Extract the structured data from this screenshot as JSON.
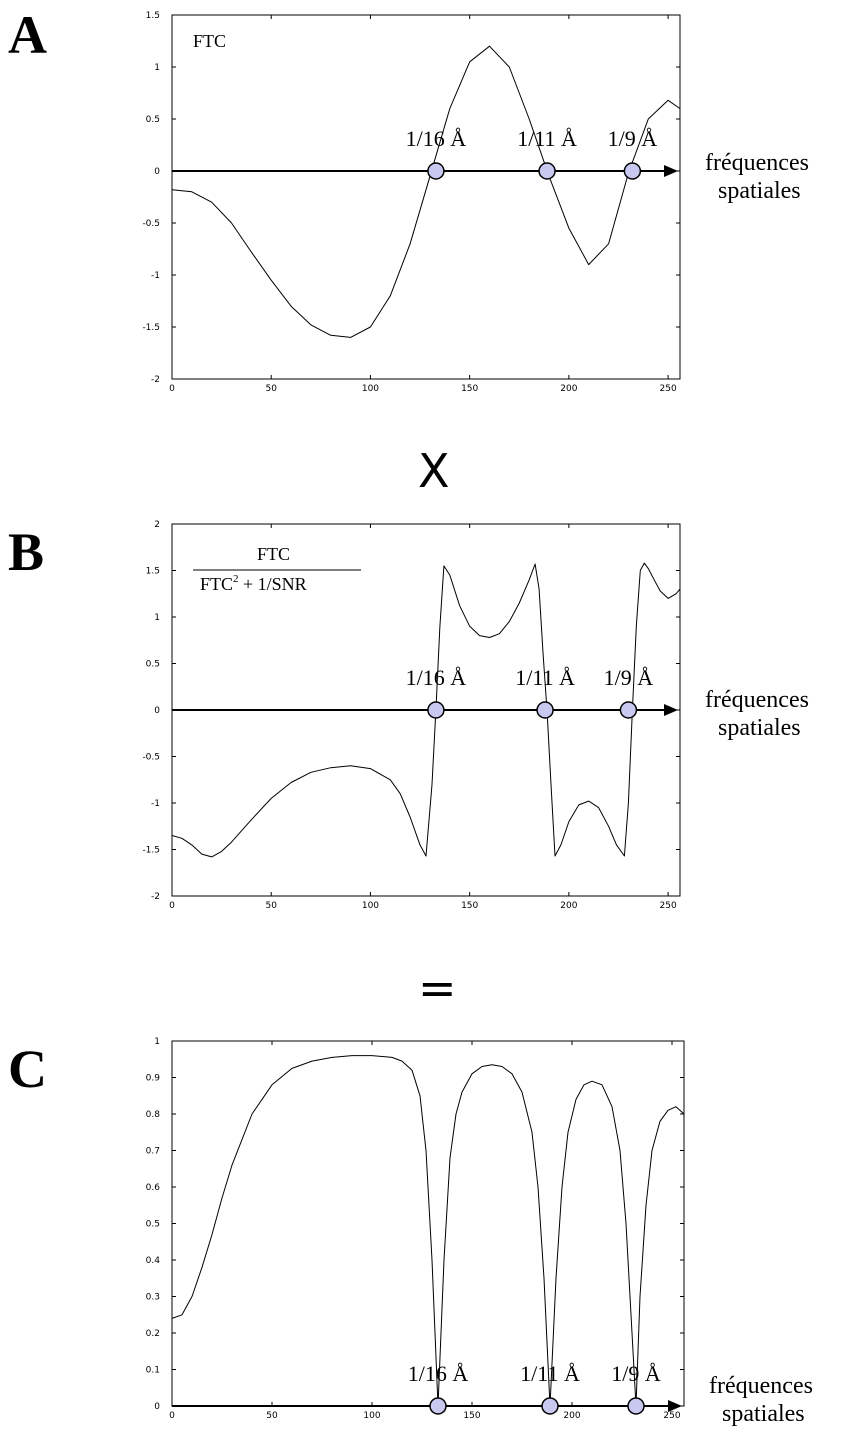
{
  "panels": {
    "A": {
      "letter": "A",
      "title": "FTC"
    },
    "B": {
      "letter": "B",
      "title_numerator": "FTC",
      "title_denominator_base": "FTC",
      "title_denominator_sup": "2",
      "title_denominator_rest": " + 1/SNR"
    },
    "C": {
      "letter": "C"
    }
  },
  "operators": {
    "times": "X",
    "equals": "="
  },
  "axis_label": {
    "line1": "fréquences",
    "line2": "spatiales"
  },
  "zero_labels": [
    "1/16 Å",
    "1/11 Å",
    "1/9 Å"
  ],
  "colors": {
    "curve": "#000000",
    "marker_fill": "#c8c8f0",
    "marker_stroke": "#000000"
  },
  "chart_data": [
    {
      "type": "line",
      "title": "FTC",
      "xlim": [
        0,
        256
      ],
      "ylim": [
        -2,
        1.5
      ],
      "x_ticks": [
        0,
        50,
        100,
        150,
        200,
        250
      ],
      "y_ticks": [
        -2,
        -1.5,
        -1,
        -0.5,
        0,
        0.5,
        1,
        1.5
      ],
      "series": [
        {
          "x": [
            0,
            10,
            20,
            30,
            40,
            50,
            60,
            70,
            80,
            90,
            100,
            110,
            120,
            130,
            140,
            150,
            160,
            170,
            180,
            190,
            200,
            210,
            220,
            230,
            240,
            250,
            256
          ],
          "y": [
            -0.18,
            -0.2,
            -0.3,
            -0.5,
            -0.78,
            -1.05,
            -1.3,
            -1.48,
            -1.58,
            -1.6,
            -1.5,
            -1.2,
            -0.7,
            -0.05,
            0.6,
            1.05,
            1.2,
            1.0,
            0.5,
            -0.05,
            -0.55,
            -0.9,
            -0.7,
            -0.02,
            0.5,
            0.68,
            0.6
          ]
        }
      ],
      "zero_markers": [
        133,
        189,
        232
      ],
      "zero_labels": [
        "1/16 Å",
        "1/11 Å",
        "1/9 Å"
      ]
    },
    {
      "type": "line",
      "title": "FTC / (FTC² + 1/SNR)",
      "xlim": [
        0,
        256
      ],
      "ylim": [
        -2,
        2
      ],
      "x_ticks": [
        0,
        50,
        100,
        150,
        200,
        250
      ],
      "y_ticks": [
        -2,
        -1.5,
        -1,
        -0.5,
        0,
        0.5,
        1,
        1.5,
        2
      ],
      "series": [
        {
          "x": [
            0,
            5,
            10,
            15,
            20,
            25,
            30,
            40,
            50,
            60,
            70,
            80,
            90,
            100,
            110,
            115,
            120,
            125,
            128,
            131,
            133,
            135,
            137,
            140,
            145,
            150,
            155,
            160,
            165,
            170,
            175,
            180,
            183,
            185,
            187,
            189,
            191,
            193,
            196,
            200,
            205,
            210,
            215,
            220,
            224,
            228,
            230,
            232,
            234,
            236,
            238,
            240,
            243,
            246,
            250,
            254,
            256
          ],
          "y": [
            -1.35,
            -1.38,
            -1.45,
            -1.55,
            -1.58,
            -1.52,
            -1.42,
            -1.18,
            -0.95,
            -0.78,
            -0.67,
            -0.62,
            -0.6,
            -0.63,
            -0.75,
            -0.9,
            -1.15,
            -1.45,
            -1.57,
            -0.8,
            0.0,
            0.9,
            1.55,
            1.45,
            1.12,
            0.9,
            0.8,
            0.78,
            0.82,
            0.95,
            1.15,
            1.4,
            1.57,
            1.3,
            0.6,
            0.0,
            -0.8,
            -1.57,
            -1.45,
            -1.2,
            -1.02,
            -0.98,
            -1.05,
            -1.25,
            -1.45,
            -1.57,
            -1.0,
            0.0,
            0.9,
            1.5,
            1.58,
            1.52,
            1.4,
            1.28,
            1.2,
            1.25,
            1.3
          ]
        }
      ],
      "zero_markers": [
        133,
        188,
        230
      ],
      "zero_labels": [
        "1/16 Å",
        "1/11 Å",
        "1/9 Å"
      ]
    },
    {
      "type": "line",
      "title": "",
      "xlim": [
        0,
        256
      ],
      "ylim": [
        0,
        1
      ],
      "x_ticks": [
        0,
        50,
        100,
        150,
        200,
        250
      ],
      "y_ticks": [
        0,
        0.1,
        0.2,
        0.3,
        0.4,
        0.5,
        0.6,
        0.7,
        0.8,
        0.9,
        1
      ],
      "series": [
        {
          "x": [
            0,
            5,
            10,
            15,
            20,
            25,
            30,
            40,
            50,
            60,
            70,
            80,
            90,
            100,
            110,
            115,
            120,
            124,
            127,
            130,
            133,
            136,
            139,
            142,
            145,
            150,
            155,
            160,
            165,
            170,
            175,
            180,
            183,
            186,
            189,
            192,
            195,
            198,
            202,
            206,
            210,
            215,
            220,
            224,
            227,
            230,
            232,
            234,
            237,
            240,
            244,
            248,
            252,
            256
          ],
          "y": [
            0.24,
            0.25,
            0.3,
            0.38,
            0.47,
            0.57,
            0.66,
            0.8,
            0.88,
            0.925,
            0.945,
            0.955,
            0.96,
            0.96,
            0.955,
            0.945,
            0.92,
            0.85,
            0.7,
            0.4,
            0.0,
            0.4,
            0.68,
            0.8,
            0.86,
            0.91,
            0.93,
            0.935,
            0.93,
            0.91,
            0.86,
            0.75,
            0.6,
            0.35,
            0.0,
            0.35,
            0.6,
            0.75,
            0.84,
            0.88,
            0.89,
            0.88,
            0.82,
            0.7,
            0.5,
            0.2,
            0.0,
            0.3,
            0.55,
            0.7,
            0.78,
            0.81,
            0.82,
            0.8
          ]
        }
      ],
      "zero_markers": [
        133,
        189,
        232
      ],
      "zero_labels": [
        "1/16 Å",
        "1/11 Å",
        "1/9 Å"
      ]
    }
  ]
}
